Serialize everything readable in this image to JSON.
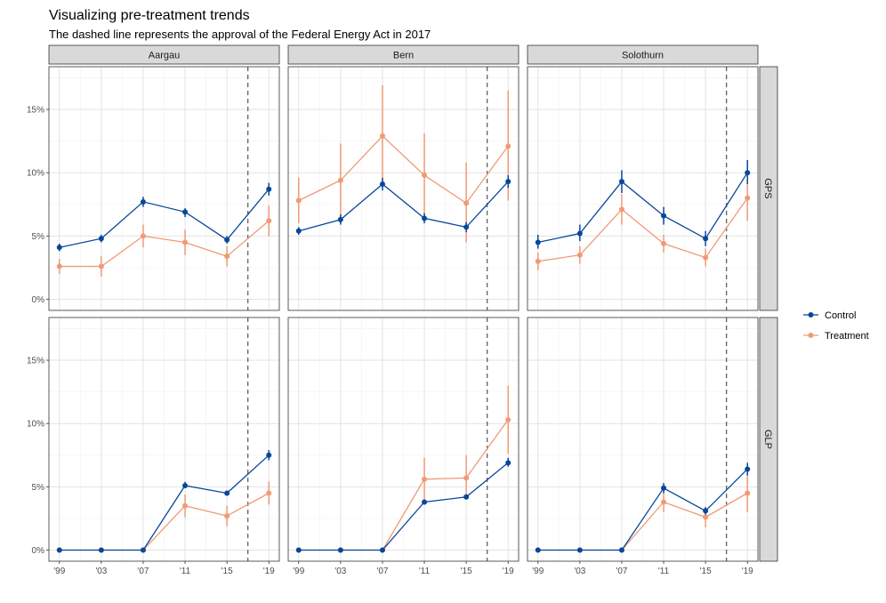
{
  "chart_data": {
    "type": "line",
    "title": "Visualizing pre-treatment trends",
    "subtitle": "The dashed line represents the approval of the Federal Energy Act in 2017",
    "x": [
      1999,
      2003,
      2007,
      2011,
      2015,
      2019
    ],
    "x_tick_labels": [
      "'99",
      "'03",
      "'07",
      "'11",
      "'15",
      "'19"
    ],
    "xlim": [
      1999,
      2019
    ],
    "ylim": [
      0,
      17.5
    ],
    "y_ticks": [
      0,
      5,
      10,
      15
    ],
    "y_tick_labels": [
      "0%",
      "5%",
      "10%",
      "15%"
    ],
    "vline_x": 2017,
    "grid": true,
    "legend_position": "right",
    "columns": [
      "Aargau",
      "Bern",
      "Solothurn"
    ],
    "rows": [
      "GPS",
      "GLP"
    ],
    "series_names": [
      "Control",
      "Treatment"
    ],
    "colors": {
      "Control": "#08479a",
      "Treatment": "#f09a76"
    },
    "panels": [
      {
        "col": "Aargau",
        "row": "GPS",
        "series": [
          {
            "name": "Control",
            "values": [
              4.1,
              4.8,
              7.7,
              6.9,
              4.7,
              8.7
            ],
            "lower": [
              3.8,
              4.5,
              7.3,
              6.5,
              4.4,
              8.2
            ],
            "upper": [
              4.4,
              5.1,
              8.1,
              7.2,
              5.0,
              9.2
            ]
          },
          {
            "name": "Treatment",
            "values": [
              2.6,
              2.6,
              5.0,
              4.5,
              3.4,
              6.2
            ],
            "lower": [
              2.0,
              1.8,
              4.1,
              3.5,
              2.6,
              5.0
            ],
            "upper": [
              3.2,
              3.4,
              5.9,
              5.5,
              4.2,
              7.4
            ]
          }
        ]
      },
      {
        "col": "Bern",
        "row": "GPS",
        "series": [
          {
            "name": "Control",
            "values": [
              5.4,
              6.3,
              9.1,
              6.4,
              5.7,
              9.3
            ],
            "lower": [
              5.1,
              5.9,
              8.6,
              6.0,
              5.3,
              8.8
            ],
            "upper": [
              5.7,
              6.7,
              9.6,
              6.8,
              6.1,
              9.8
            ]
          },
          {
            "name": "Treatment",
            "values": [
              7.8,
              9.4,
              12.9,
              9.8,
              7.6,
              12.1
            ],
            "lower": [
              6.0,
              6.5,
              8.9,
              6.5,
              4.5,
              7.8
            ],
            "upper": [
              9.6,
              12.3,
              16.9,
              13.1,
              10.8,
              16.5
            ]
          }
        ]
      },
      {
        "col": "Solothurn",
        "row": "GPS",
        "series": [
          {
            "name": "Control",
            "values": [
              4.5,
              5.2,
              9.3,
              6.6,
              4.8,
              10.0
            ],
            "lower": [
              4.0,
              4.6,
              8.4,
              5.9,
              4.2,
              9.1
            ],
            "upper": [
              5.1,
              5.9,
              10.2,
              7.3,
              5.4,
              11.0
            ]
          },
          {
            "name": "Treatment",
            "values": [
              3.0,
              3.5,
              7.1,
              4.4,
              3.3,
              8.0
            ],
            "lower": [
              2.3,
              2.8,
              5.9,
              3.7,
              2.6,
              6.2
            ],
            "upper": [
              3.7,
              4.2,
              8.3,
              5.1,
              4.0,
              9.8
            ]
          }
        ]
      },
      {
        "col": "Aargau",
        "row": "GLP",
        "series": [
          {
            "name": "Control",
            "values": [
              0,
              0,
              0,
              5.1,
              4.5,
              7.5
            ],
            "lower": [
              0,
              0,
              0,
              4.9,
              4.3,
              7.1
            ],
            "upper": [
              0,
              0,
              0,
              5.4,
              4.7,
              7.9
            ]
          },
          {
            "name": "Treatment",
            "values": [
              0,
              0,
              0,
              3.5,
              2.7,
              4.5
            ],
            "lower": [
              0,
              0,
              0,
              2.6,
              1.9,
              3.6
            ],
            "upper": [
              0,
              0,
              0,
              4.4,
              3.5,
              5.4
            ]
          }
        ]
      },
      {
        "col": "Bern",
        "row": "GLP",
        "series": [
          {
            "name": "Control",
            "values": [
              0,
              0,
              0,
              3.8,
              4.2,
              6.9
            ],
            "lower": [
              0,
              0,
              0,
              3.6,
              4.0,
              6.6
            ],
            "upper": [
              0,
              0,
              0,
              4.0,
              4.4,
              7.3
            ]
          },
          {
            "name": "Treatment",
            "values": [
              0,
              0,
              0,
              5.6,
              5.7,
              10.3
            ],
            "lower": [
              0,
              0,
              0,
              3.9,
              4.0,
              7.6
            ],
            "upper": [
              0,
              0,
              0,
              7.3,
              7.5,
              13.0
            ]
          }
        ]
      },
      {
        "col": "Solothurn",
        "row": "GLP",
        "series": [
          {
            "name": "Control",
            "values": [
              0,
              0,
              0,
              4.9,
              3.1,
              6.4
            ],
            "lower": [
              0,
              0,
              0,
              4.5,
              2.8,
              5.9
            ],
            "upper": [
              0,
              0,
              0,
              5.3,
              3.4,
              6.9
            ]
          },
          {
            "name": "Treatment",
            "values": [
              0,
              0,
              0,
              3.8,
              2.6,
              4.5
            ],
            "lower": [
              0,
              0,
              0,
              3.0,
              1.8,
              3.0
            ],
            "upper": [
              0,
              0,
              0,
              4.6,
              3.4,
              6.0
            ]
          }
        ]
      }
    ]
  }
}
